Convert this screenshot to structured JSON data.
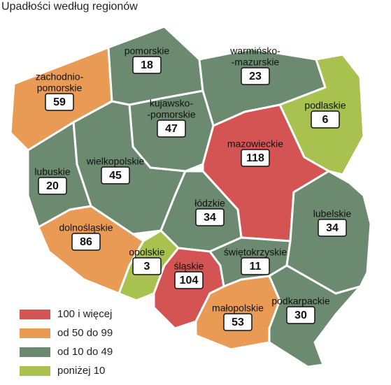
{
  "title": "Upadłości według regionów",
  "legend": [
    {
      "label": "100 i więcej",
      "color": "#d45454"
    },
    {
      "label": "od 50 do 99",
      "color": "#e99b55"
    },
    {
      "label": "od 10 do 49",
      "color": "#6c8a6f"
    },
    {
      "label": "poniżej 10",
      "color": "#a9c14f"
    }
  ],
  "regions": [
    {
      "name": [
        "zachodnio-",
        "pomorskie"
      ],
      "value": 59,
      "color": "#e99b55"
    },
    {
      "name": [
        "pomorskie"
      ],
      "value": 18,
      "color": "#6c8a6f"
    },
    {
      "name": [
        "warmińsko-",
        "-mazurskie"
      ],
      "value": 23,
      "color": "#6c8a6f"
    },
    {
      "name": [
        "podlaskie"
      ],
      "value": 6,
      "color": "#a9c14f"
    },
    {
      "name": [
        "kujawsko-",
        "-pomorskie"
      ],
      "value": 47,
      "color": "#6c8a6f"
    },
    {
      "name": [
        "wielkopolskie"
      ],
      "value": 45,
      "color": "#6c8a6f"
    },
    {
      "name": [
        "lubuskie"
      ],
      "value": 20,
      "color": "#6c8a6f"
    },
    {
      "name": [
        "mazowieckie"
      ],
      "value": 118,
      "color": "#d45454"
    },
    {
      "name": [
        "łódzkie"
      ],
      "value": 34,
      "color": "#6c8a6f"
    },
    {
      "name": [
        "dolnośląskie"
      ],
      "value": 86,
      "color": "#e99b55"
    },
    {
      "name": [
        "opolskie"
      ],
      "value": 3,
      "color": "#a9c14f"
    },
    {
      "name": [
        "śląskie"
      ],
      "value": 104,
      "color": "#d45454"
    },
    {
      "name": [
        "świętokrzyskie"
      ],
      "value": 11,
      "color": "#6c8a6f"
    },
    {
      "name": [
        "lubelskie"
      ],
      "value": 34,
      "color": "#6c8a6f"
    },
    {
      "name": [
        "małopolskie"
      ],
      "value": 53,
      "color": "#e99b55"
    },
    {
      "name": [
        "podkarpackie"
      ],
      "value": 30,
      "color": "#6c8a6f"
    }
  ]
}
